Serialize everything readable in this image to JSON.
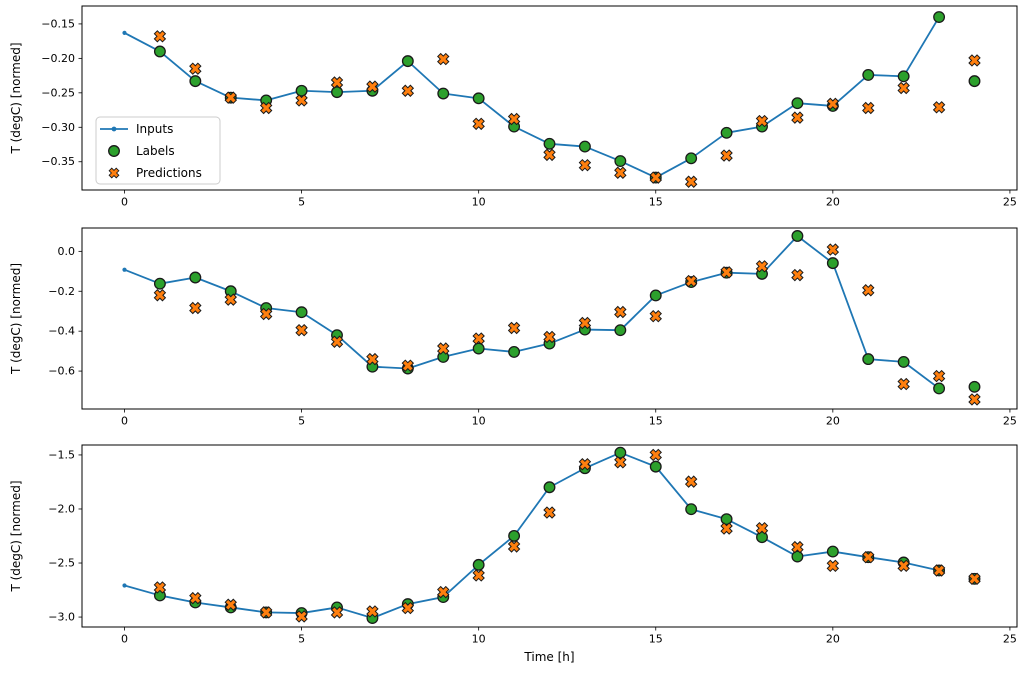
{
  "figure": {
    "background": "#ffffff",
    "xlabel": "Time [h]",
    "ylabel": "T (degC) [normed]",
    "colors": {
      "inputs_line": "#1f77b4",
      "labels_marker": "#2ca02c",
      "predictions_marker": "#ff7f0e",
      "marker_edge": "#1a1a1a",
      "axis": "#000000"
    },
    "legend": {
      "items": [
        {
          "label": "Inputs",
          "type": "line-dot",
          "color": "#1f77b4"
        },
        {
          "label": "Labels",
          "type": "circle",
          "color": "#2ca02c"
        },
        {
          "label": "Predictions",
          "type": "x-marker",
          "color": "#ff7f0e"
        }
      ]
    }
  },
  "chart_data": [
    {
      "type": "line",
      "title": "",
      "ylabel": "T (degC) [normed]",
      "xlim": [
        -1.2,
        25.2
      ],
      "xticks": [
        0,
        5,
        10,
        15,
        20,
        25
      ],
      "ylim": [
        -0.391,
        -0.124
      ],
      "yticks": [
        -0.15,
        -0.2,
        -0.25,
        -0.3,
        -0.35
      ],
      "ydecimals": 2,
      "grid": false,
      "legend_position": "lower-left-inside",
      "series": [
        {
          "name": "Inputs",
          "x": [
            0,
            1,
            2,
            3,
            4,
            5,
            6,
            7,
            8,
            9,
            10,
            11,
            12,
            13,
            14,
            15,
            16,
            17,
            18,
            19,
            20,
            21,
            22,
            23
          ],
          "y": [
            -0.163,
            -0.19,
            -0.233,
            -0.257,
            -0.261,
            -0.247,
            -0.249,
            -0.247,
            -0.204,
            -0.251,
            -0.258,
            -0.299,
            -0.324,
            -0.328,
            -0.349,
            -0.373,
            -0.345,
            -0.308,
            -0.299,
            -0.265,
            -0.269,
            -0.224,
            -0.226,
            -0.14
          ]
        },
        {
          "name": "Labels",
          "x": [
            1,
            2,
            3,
            4,
            5,
            6,
            7,
            8,
            9,
            10,
            11,
            12,
            13,
            14,
            15,
            16,
            17,
            18,
            19,
            20,
            21,
            22,
            23,
            24
          ],
          "y": [
            -0.19,
            -0.233,
            -0.257,
            -0.261,
            -0.247,
            -0.249,
            -0.247,
            -0.204,
            -0.251,
            -0.258,
            -0.299,
            -0.324,
            -0.328,
            -0.349,
            -0.373,
            -0.345,
            -0.308,
            -0.299,
            -0.265,
            -0.269,
            -0.224,
            -0.226,
            -0.14,
            -0.233
          ]
        },
        {
          "name": "Predictions",
          "x": [
            1,
            2,
            3,
            4,
            5,
            6,
            7,
            8,
            9,
            10,
            11,
            12,
            13,
            14,
            15,
            16,
            17,
            18,
            19,
            20,
            21,
            22,
            23,
            24
          ],
          "y": [
            -0.168,
            -0.215,
            -0.257,
            -0.272,
            -0.261,
            -0.235,
            -0.241,
            -0.247,
            -0.201,
            -0.295,
            -0.288,
            -0.34,
            -0.355,
            -0.366,
            -0.373,
            -0.379,
            -0.341,
            -0.291,
            -0.286,
            -0.266,
            -0.272,
            -0.243,
            -0.271,
            -0.203
          ]
        }
      ]
    },
    {
      "type": "line",
      "title": "",
      "ylabel": "T (degC) [normed]",
      "xlim": [
        -1.2,
        25.2
      ],
      "xticks": [
        0,
        5,
        10,
        15,
        20,
        25
      ],
      "ylim": [
        -0.79,
        0.117
      ],
      "yticks": [
        0.0,
        -0.2,
        -0.4,
        -0.6
      ],
      "ydecimals": 1,
      "grid": false,
      "legend_position": "none",
      "series": [
        {
          "name": "Inputs",
          "x": [
            0,
            1,
            2,
            3,
            4,
            5,
            6,
            7,
            8,
            9,
            10,
            11,
            12,
            13,
            14,
            15,
            16,
            17,
            18,
            19,
            20,
            21,
            22,
            23
          ],
          "y": [
            -0.092,
            -0.162,
            -0.131,
            -0.2,
            -0.284,
            -0.305,
            -0.42,
            -0.578,
            -0.587,
            -0.529,
            -0.487,
            -0.504,
            -0.462,
            -0.392,
            -0.395,
            -0.221,
            -0.154,
            -0.107,
            -0.113,
            0.077,
            -0.059,
            -0.54,
            -0.554,
            -0.687
          ]
        },
        {
          "name": "Labels",
          "x": [
            1,
            2,
            3,
            4,
            5,
            6,
            7,
            8,
            9,
            10,
            11,
            12,
            13,
            14,
            15,
            16,
            17,
            18,
            19,
            20,
            21,
            22,
            23,
            24
          ],
          "y": [
            -0.162,
            -0.131,
            -0.2,
            -0.284,
            -0.305,
            -0.42,
            -0.578,
            -0.587,
            -0.529,
            -0.487,
            -0.504,
            -0.462,
            -0.392,
            -0.395,
            -0.221,
            -0.154,
            -0.107,
            -0.113,
            0.077,
            -0.059,
            -0.54,
            -0.554,
            -0.687,
            -0.679
          ]
        },
        {
          "name": "Predictions",
          "x": [
            1,
            2,
            3,
            4,
            5,
            6,
            7,
            8,
            9,
            10,
            11,
            12,
            13,
            14,
            15,
            16,
            17,
            18,
            19,
            20,
            21,
            22,
            23,
            24
          ],
          "y": [
            -0.22,
            -0.284,
            -0.242,
            -0.314,
            -0.395,
            -0.453,
            -0.54,
            -0.573,
            -0.487,
            -0.437,
            -0.384,
            -0.429,
            -0.359,
            -0.304,
            -0.325,
            -0.149,
            -0.105,
            -0.075,
            -0.119,
            0.009,
            -0.195,
            -0.665,
            -0.625,
            -0.742
          ]
        }
      ]
    },
    {
      "type": "line",
      "title": "",
      "ylabel": "T (degC) [normed]",
      "xlabel": "Time [h]",
      "xlim": [
        -1.2,
        25.2
      ],
      "xticks": [
        0,
        5,
        10,
        15,
        20,
        25
      ],
      "ylim": [
        -3.092,
        -1.408
      ],
      "yticks": [
        -1.5,
        -2.0,
        -2.5,
        -3.0
      ],
      "ydecimals": 1,
      "grid": false,
      "legend_position": "none",
      "series": [
        {
          "name": "Inputs",
          "x": [
            0,
            1,
            2,
            3,
            4,
            5,
            6,
            7,
            8,
            9,
            10,
            11,
            12,
            13,
            14,
            15,
            16,
            17,
            18,
            19,
            20,
            21,
            22,
            23
          ],
          "y": [
            -2.708,
            -2.8,
            -2.865,
            -2.911,
            -2.957,
            -2.963,
            -2.911,
            -3.009,
            -2.88,
            -2.815,
            -2.517,
            -2.249,
            -1.799,
            -1.623,
            -1.479,
            -1.608,
            -2.002,
            -2.094,
            -2.261,
            -2.44,
            -2.394,
            -2.446,
            -2.495,
            -2.569
          ]
        },
        {
          "name": "Labels",
          "x": [
            1,
            2,
            3,
            4,
            5,
            6,
            7,
            8,
            9,
            10,
            11,
            12,
            13,
            14,
            15,
            16,
            17,
            18,
            19,
            20,
            21,
            22,
            23,
            24
          ],
          "y": [
            -2.8,
            -2.865,
            -2.911,
            -2.957,
            -2.963,
            -2.911,
            -3.009,
            -2.88,
            -2.815,
            -2.517,
            -2.249,
            -1.799,
            -1.623,
            -1.479,
            -1.608,
            -2.002,
            -2.094,
            -2.261,
            -2.44,
            -2.394,
            -2.446,
            -2.495,
            -2.569,
            -2.646
          ]
        },
        {
          "name": "Predictions",
          "x": [
            1,
            2,
            3,
            4,
            5,
            6,
            7,
            8,
            9,
            10,
            11,
            12,
            13,
            14,
            15,
            16,
            17,
            18,
            19,
            20,
            21,
            22,
            23,
            24
          ],
          "y": [
            -2.726,
            -2.825,
            -2.886,
            -2.957,
            -2.994,
            -2.957,
            -2.948,
            -2.917,
            -2.769,
            -2.615,
            -2.347,
            -2.033,
            -1.586,
            -1.568,
            -1.5,
            -1.747,
            -2.181,
            -2.178,
            -2.353,
            -2.526,
            -2.446,
            -2.526,
            -2.569,
            -2.646
          ]
        }
      ]
    }
  ]
}
